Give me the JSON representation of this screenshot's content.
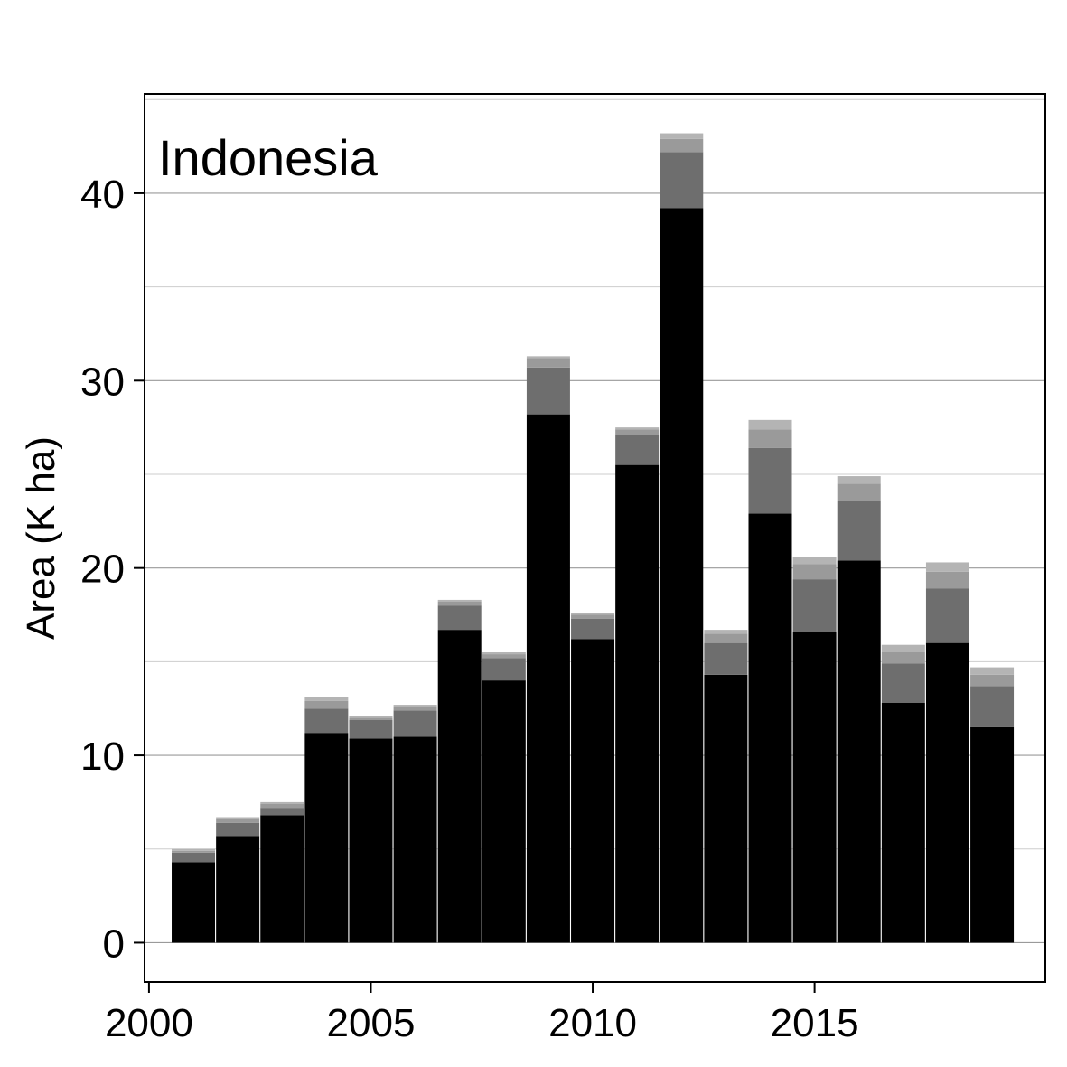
{
  "chart_data": {
    "type": "bar",
    "stacked": true,
    "title": "Indonesia",
    "xlabel": "",
    "ylabel": "Area (K ha)",
    "x": [
      2001,
      2002,
      2003,
      2004,
      2005,
      2006,
      2007,
      2008,
      2009,
      2010,
      2011,
      2012,
      2013,
      2014,
      2015,
      2016,
      2017,
      2018,
      2019
    ],
    "xlim": [
      1999.9,
      2020.2
    ],
    "ylim": [
      -2.1,
      45.3
    ],
    "xticks": [
      2000,
      2005,
      2010,
      2015
    ],
    "yticks": [
      0,
      10,
      20,
      30,
      40
    ],
    "grid": true,
    "legend": "none",
    "series": [
      {
        "color": "#000000",
        "values": [
          4.3,
          5.7,
          6.8,
          11.2,
          10.9,
          11.0,
          16.7,
          14.0,
          28.2,
          16.2,
          25.5,
          39.2,
          14.3,
          22.9,
          16.6,
          20.4,
          12.8,
          16.0,
          11.5
        ]
      },
      {
        "color": "#6e6e6e",
        "values": [
          0.5,
          0.7,
          0.4,
          1.3,
          1.0,
          1.4,
          1.3,
          1.2,
          2.5,
          1.1,
          1.6,
          3.0,
          1.7,
          3.5,
          2.8,
          3.2,
          2.1,
          2.9,
          2.2
        ]
      },
      {
        "color": "#9a9a9a",
        "values": [
          0.1,
          0.2,
          0.2,
          0.4,
          0.1,
          0.2,
          0.2,
          0.2,
          0.5,
          0.2,
          0.3,
          0.7,
          0.5,
          1.0,
          0.8,
          0.9,
          0.6,
          0.9,
          0.6
        ]
      },
      {
        "color": "#b4b4b4",
        "values": [
          0.1,
          0.1,
          0.1,
          0.2,
          0.1,
          0.1,
          0.1,
          0.1,
          0.1,
          0.1,
          0.1,
          0.3,
          0.2,
          0.5,
          0.4,
          0.4,
          0.4,
          0.5,
          0.4
        ]
      }
    ]
  }
}
